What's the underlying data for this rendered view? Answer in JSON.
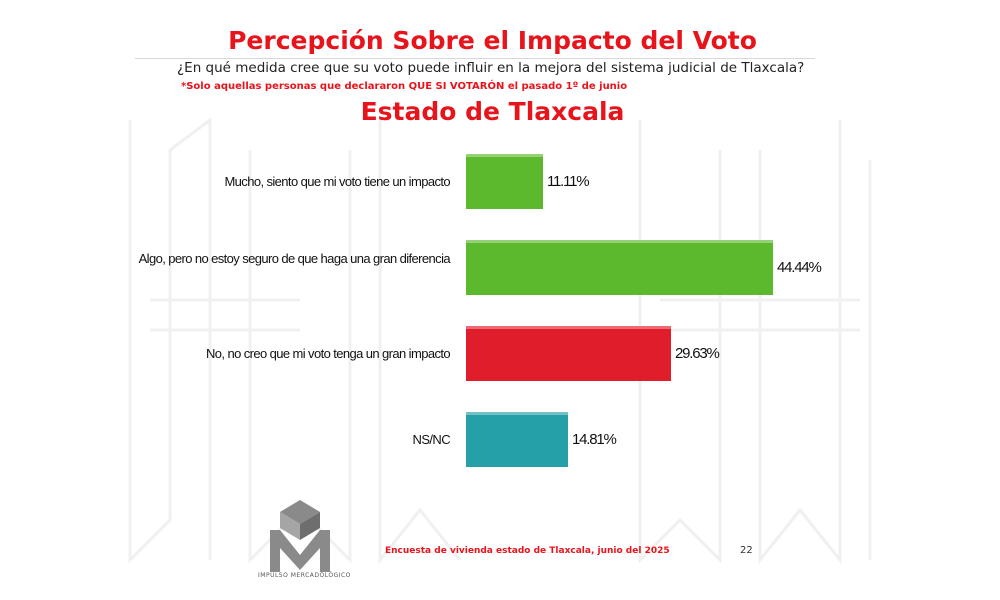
{
  "chart_data": {
    "type": "bar",
    "orientation": "horizontal",
    "title": "Percepción Sobre el Impacto del  Voto",
    "question": "¿En qué medida cree que su voto puede influir en la mejora del sistema judicial de Tlaxcala?",
    "note": "*Solo aquellas personas que declararon QUE SI VOTARÓN el pasado 1º de junio",
    "subtitle": "Estado de Tlaxcala",
    "categories": [
      "Mucho, siento que mi voto tiene un impacto",
      "Algo, pero no estoy seguro de que haga una gran diferencia",
      "No, no creo que mi voto tenga un gran impacto",
      "NS/NC"
    ],
    "values": [
      11.11,
      44.44,
      29.63,
      14.81
    ],
    "value_labels": [
      "11.11%",
      "44.44%",
      "29.63%",
      "14.81%"
    ],
    "colors": [
      "#5cb82d",
      "#5cb82d",
      "#e01d2a",
      "#26a0a8"
    ],
    "xlim": [
      0,
      45
    ],
    "grid": false,
    "legend": "none"
  },
  "footer": "Encuesta de vivienda estado de Tlaxcala, junio   del 2025",
  "page_number": "22",
  "logo": {
    "text": "IMPULSO MERCADOLÓGICO"
  }
}
